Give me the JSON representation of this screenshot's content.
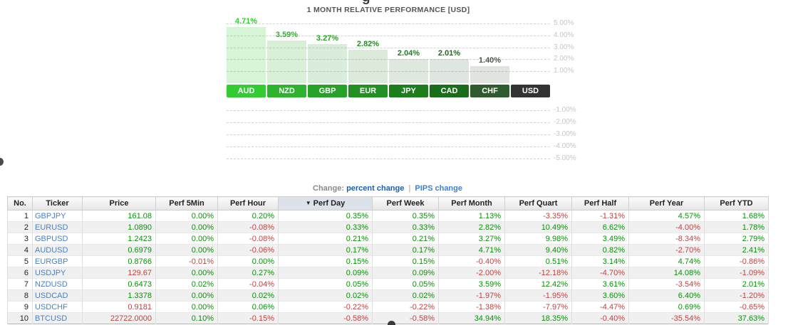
{
  "page": {
    "cropped_heading_fragment": "g"
  },
  "chart_data": {
    "type": "bar",
    "title": "1 MONTH RELATIVE PERFORMANCE  [USD]",
    "categories": [
      "AUD",
      "NZD",
      "GBP",
      "EUR",
      "JPY",
      "CAD",
      "CHF",
      "USD"
    ],
    "values": [
      4.71,
      3.59,
      3.27,
      2.82,
      2.04,
      2.01,
      1.4,
      0
    ],
    "value_labels": [
      "4.71%",
      "3.59%",
      "3.27%",
      "2.82%",
      "2.04%",
      "2.01%",
      "1.40%",
      ""
    ],
    "ylim": [
      -5,
      5
    ],
    "yticks": [
      5,
      4,
      3,
      2,
      1,
      -1,
      -2,
      -3,
      -4,
      -5
    ],
    "ytick_labels": [
      "5.00%",
      "4.00%",
      "3.00%",
      "2.00%",
      "1.00%",
      "-1.00%",
      "-2.00%",
      "-3.00%",
      "-4.00%",
      "-5.00%"
    ],
    "grid": true,
    "axis_side": "right",
    "legend": "none",
    "category_colors": [
      "#33cc33",
      "#2db32d",
      "#28a128",
      "#239023",
      "#1e7e1e",
      "#1a6d1a",
      "#2e5c2e",
      "#333333"
    ],
    "bar_fills": [
      "rgba(51,204,51,0.20)",
      "rgba(60,180,60,0.20)",
      "rgba(70,165,70,0.20)",
      "rgba(80,150,80,0.20)",
      "rgba(88,138,88,0.20)",
      "rgba(95,128,95,0.20)",
      "rgba(100,118,100,0.20)",
      "rgba(0,0,0,0)"
    ],
    "value_label_colors": [
      "#33cc33",
      "#2db32d",
      "#28a128",
      "#239023",
      "#1e7e1e",
      "#1a6d1a",
      "#4a5a4a",
      ""
    ]
  },
  "change_switch": {
    "label": "Change:",
    "percent_option": "percent change",
    "separator": "|",
    "pips_option": "PIPS change"
  },
  "table": {
    "headers": [
      "No.",
      "Ticker",
      "Price",
      "Perf 5Min",
      "Perf Hour",
      "Perf Day",
      "Perf Week",
      "Perf Month",
      "Perf Quart",
      "Perf Half",
      "Perf Year",
      "Perf YTD"
    ],
    "sorted_column": "Perf Day",
    "sort_icon": "▼",
    "rows": [
      {
        "no": "1",
        "ticker": "GBPJPY",
        "price": "161.08",
        "price_dir": "up",
        "perfs": [
          "0.00%",
          "0.20%",
          "0.35%",
          "0.35%",
          "1.13%",
          "-3.35%",
          "-1.31%",
          "4.57%",
          "1.68%"
        ]
      },
      {
        "no": "2",
        "ticker": "EURUSD",
        "price": "1.0890",
        "price_dir": "up",
        "perfs": [
          "0.00%",
          "-0.08%",
          "0.33%",
          "0.33%",
          "2.82%",
          "10.49%",
          "6.62%",
          "-4.00%",
          "1.78%"
        ]
      },
      {
        "no": "3",
        "ticker": "GBPUSD",
        "price": "1.2423",
        "price_dir": "up",
        "perfs": [
          "0.00%",
          "-0.08%",
          "0.21%",
          "0.21%",
          "3.27%",
          "9.98%",
          "3.49%",
          "-8.34%",
          "2.79%"
        ]
      },
      {
        "no": "4",
        "ticker": "AUDUSD",
        "price": "0.6979",
        "price_dir": "up",
        "perfs": [
          "0.00%",
          "-0.06%",
          "0.17%",
          "0.17%",
          "4.71%",
          "9.40%",
          "0.82%",
          "-2.70%",
          "2.41%"
        ]
      },
      {
        "no": "5",
        "ticker": "EURGBP",
        "price": "0.8766",
        "price_dir": "up",
        "perfs": [
          "-0.01%",
          "0.00%",
          "0.15%",
          "0.15%",
          "-0.40%",
          "0.51%",
          "3.14%",
          "4.74%",
          "-0.86%"
        ]
      },
      {
        "no": "6",
        "ticker": "USDJPY",
        "price": "129.67",
        "price_dir": "down",
        "perfs": [
          "0.00%",
          "0.27%",
          "0.09%",
          "0.09%",
          "-2.00%",
          "-12.18%",
          "-4.70%",
          "14.08%",
          "-1.09%"
        ]
      },
      {
        "no": "7",
        "ticker": "NZDUSD",
        "price": "0.6473",
        "price_dir": "up",
        "perfs": [
          "0.02%",
          "-0.04%",
          "0.05%",
          "0.05%",
          "3.59%",
          "12.42%",
          "3.61%",
          "-3.54%",
          "2.01%"
        ]
      },
      {
        "no": "8",
        "ticker": "USDCAD",
        "price": "1.3378",
        "price_dir": "up",
        "perfs": [
          "0.00%",
          "0.02%",
          "0.02%",
          "0.02%",
          "-1.97%",
          "-1.95%",
          "3.60%",
          "6.40%",
          "-1.20%"
        ]
      },
      {
        "no": "9",
        "ticker": "USDCHF",
        "price": "0.9181",
        "price_dir": "down",
        "perfs": [
          "0.00%",
          "0.06%",
          "-0.22%",
          "-0.22%",
          "-1.38%",
          "-7.97%",
          "-4.47%",
          "0.69%",
          "-0.65%"
        ]
      },
      {
        "no": "10",
        "ticker": "BTCUSD",
        "price": "22722.0000",
        "price_dir": "down",
        "perfs": [
          "0.10%",
          "-0.15%",
          "-0.58%",
          "-0.58%",
          "34.94%",
          "18.35%",
          "-0.40%",
          "-35.54%",
          "37.63%"
        ]
      }
    ]
  },
  "colors": {
    "positive": "#0a8f0a",
    "negative": "#b94442",
    "ticker_link": "#4a7fc1",
    "grid_label": "#c6c6c6",
    "chart_title": "#555555",
    "change_label": "#8a8a8a",
    "percent_link": "#1a5fb0",
    "pips_link": "#3d7fd4"
  }
}
